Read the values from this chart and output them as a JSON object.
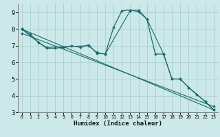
{
  "xlabel": "Humidex (Indice chaleur)",
  "ylabel": "",
  "bg_color": "#cce8e8",
  "grid_color": "#aad4d4",
  "line_color": "#1a6b6b",
  "xlim": [
    -0.5,
    23.5
  ],
  "ylim": [
    3,
    9.5
  ],
  "xticks": [
    0,
    1,
    2,
    3,
    4,
    5,
    6,
    7,
    8,
    9,
    10,
    11,
    12,
    13,
    14,
    15,
    16,
    17,
    18,
    19,
    20,
    21,
    22,
    23
  ],
  "yticks": [
    3,
    4,
    5,
    6,
    7,
    8,
    9
  ],
  "series": [
    {
      "x": [
        0,
        1,
        2,
        3,
        4,
        5,
        6,
        7,
        8,
        9,
        10,
        11,
        12,
        13,
        14,
        15,
        16,
        17,
        18,
        19,
        20,
        21,
        22,
        23
      ],
      "y": [
        8.0,
        7.7,
        7.2,
        6.85,
        6.85,
        6.9,
        7.0,
        6.9,
        7.05,
        6.55,
        6.5,
        8.1,
        9.1,
        9.15,
        9.05,
        8.6,
        6.5,
        6.5,
        5.0,
        5.0,
        4.5,
        4.05,
        3.65,
        3.15
      ]
    },
    {
      "x": [
        0,
        2,
        3,
        8,
        9,
        10,
        13,
        14,
        15,
        17,
        18,
        19,
        20,
        22,
        23
      ],
      "y": [
        8.0,
        7.2,
        6.9,
        7.0,
        6.6,
        6.5,
        9.1,
        9.15,
        8.6,
        6.5,
        5.0,
        5.0,
        4.5,
        3.65,
        3.15
      ]
    },
    {
      "x": [
        0,
        23
      ],
      "y": [
        8.0,
        3.15
      ]
    },
    {
      "x": [
        0,
        23
      ],
      "y": [
        7.75,
        3.35
      ]
    }
  ]
}
